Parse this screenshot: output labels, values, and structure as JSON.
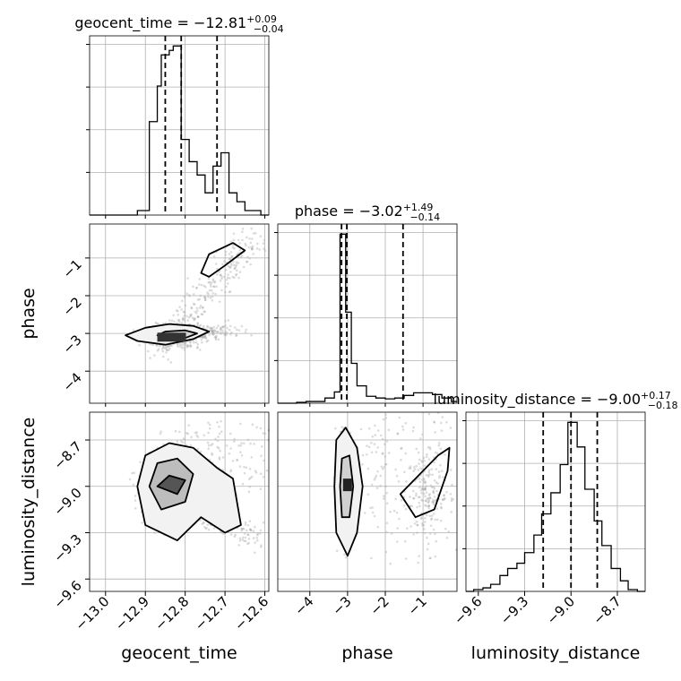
{
  "chart_data": {
    "type": "corner",
    "parameters": [
      "geocent_time",
      "phase",
      "luminosity_distance"
    ],
    "titles": [
      {
        "param": "geocent_time",
        "text": "geocent_time = −12.81",
        "sup": "+0.09",
        "sub": "−0.04"
      },
      {
        "param": "phase",
        "text": "phase = −3.02",
        "sup": "+1.49",
        "sub": "−0.14"
      },
      {
        "param": "luminosity_distance",
        "text": "luminosity_distance = −9.00",
        "sup": "+0.17",
        "sub": "−0.18"
      }
    ],
    "axis_labels": {
      "x": [
        "geocent_time",
        "phase",
        "luminosity_distance"
      ],
      "y": [
        "phase",
        "luminosity_distance"
      ]
    },
    "ranges": {
      "geocent_time": [
        -13.04,
        -12.59
      ],
      "phase": [
        -4.85,
        -0.1
      ],
      "luminosity_distance": [
        -9.68,
        -8.52
      ]
    },
    "ticks": {
      "geocent_time": [
        -13.0,
        -12.9,
        -12.8,
        -12.7,
        -12.6
      ],
      "geocent_time_labels": [
        "−13.0",
        "−12.9",
        "−12.8",
        "−12.7",
        "−12.6"
      ],
      "phase": [
        -4,
        -3,
        -2,
        -1
      ],
      "phase_labels": [
        "−4",
        "−3",
        "−2",
        "−1"
      ],
      "luminosity_distance": [
        -9.6,
        -9.3,
        -9.0,
        -8.7
      ],
      "luminosity_distance_labels": [
        "−9.6",
        "−9.3",
        "−9.0",
        "−8.7"
      ]
    },
    "quantiles": {
      "geocent_time": [
        -12.85,
        -12.81,
        -12.72
      ],
      "phase": [
        -3.16,
        -3.02,
        -1.53
      ],
      "luminosity_distance": [
        -9.18,
        -9.0,
        -8.83
      ]
    },
    "histograms": {
      "geocent_time": {
        "edges": [
          -13.04,
          -13.01,
          -12.98,
          -12.95,
          -12.92,
          -12.89,
          -12.87,
          -12.86,
          -12.84,
          -12.83,
          -12.81,
          -12.79,
          -12.77,
          -12.75,
          -12.73,
          -12.71,
          -12.69,
          -12.67,
          -12.65,
          -12.63,
          -12.61,
          -12.59
        ],
        "counts": [
          0,
          0,
          0,
          0,
          1,
          21,
          29,
          36,
          37,
          38,
          17,
          12,
          9,
          5,
          11,
          14,
          5,
          3,
          1,
          1,
          0
        ]
      },
      "phase": {
        "edges": [
          -4.85,
          -4.6,
          -4.35,
          -4.1,
          -3.85,
          -3.6,
          -3.35,
          -3.2,
          -3.05,
          -2.9,
          -2.75,
          -2.5,
          -2.25,
          -2.0,
          -1.75,
          -1.5,
          -1.25,
          -1.0,
          -0.75,
          -0.5,
          -0.25,
          -0.1
        ],
        "counts": [
          0,
          0,
          1,
          2,
          2,
          6,
          13,
          195,
          105,
          46,
          20,
          8,
          6,
          5,
          6,
          9,
          12,
          12,
          10,
          6,
          2
        ]
      },
      "luminosity_distance": {
        "edges": [
          -9.68,
          -9.63,
          -9.57,
          -9.52,
          -9.46,
          -9.41,
          -9.35,
          -9.3,
          -9.24,
          -9.19,
          -9.13,
          -9.07,
          -9.02,
          -8.96,
          -8.91,
          -8.85,
          -8.8,
          -8.74,
          -8.68,
          -8.63,
          -8.57,
          -8.52
        ],
        "counts": [
          0,
          1,
          2,
          4,
          9,
          13,
          16,
          22,
          32,
          44,
          56,
          72,
          96,
          82,
          58,
          40,
          26,
          13,
          6,
          1,
          0
        ]
      }
    }
  }
}
